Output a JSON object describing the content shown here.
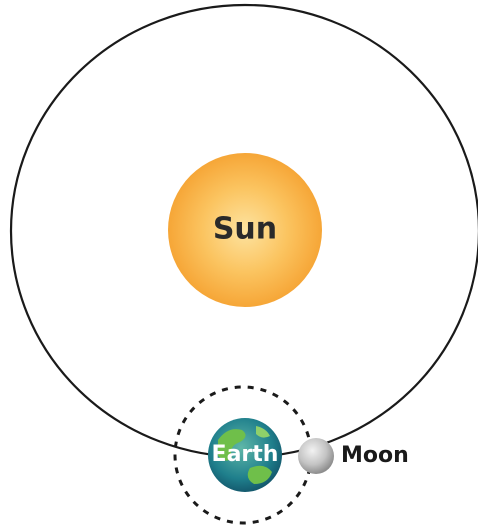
{
  "sun": {
    "label": "Sun"
  },
  "earth": {
    "label": "Earth"
  },
  "moon": {
    "label": "Moon"
  }
}
